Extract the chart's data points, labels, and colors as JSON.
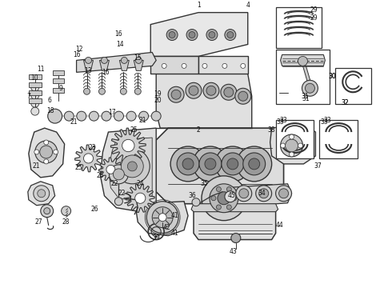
{
  "bg_color": "#ffffff",
  "line_color": "#333333",
  "text_color": "#111111",
  "fig_width": 4.9,
  "fig_height": 3.6,
  "dpi": 100
}
